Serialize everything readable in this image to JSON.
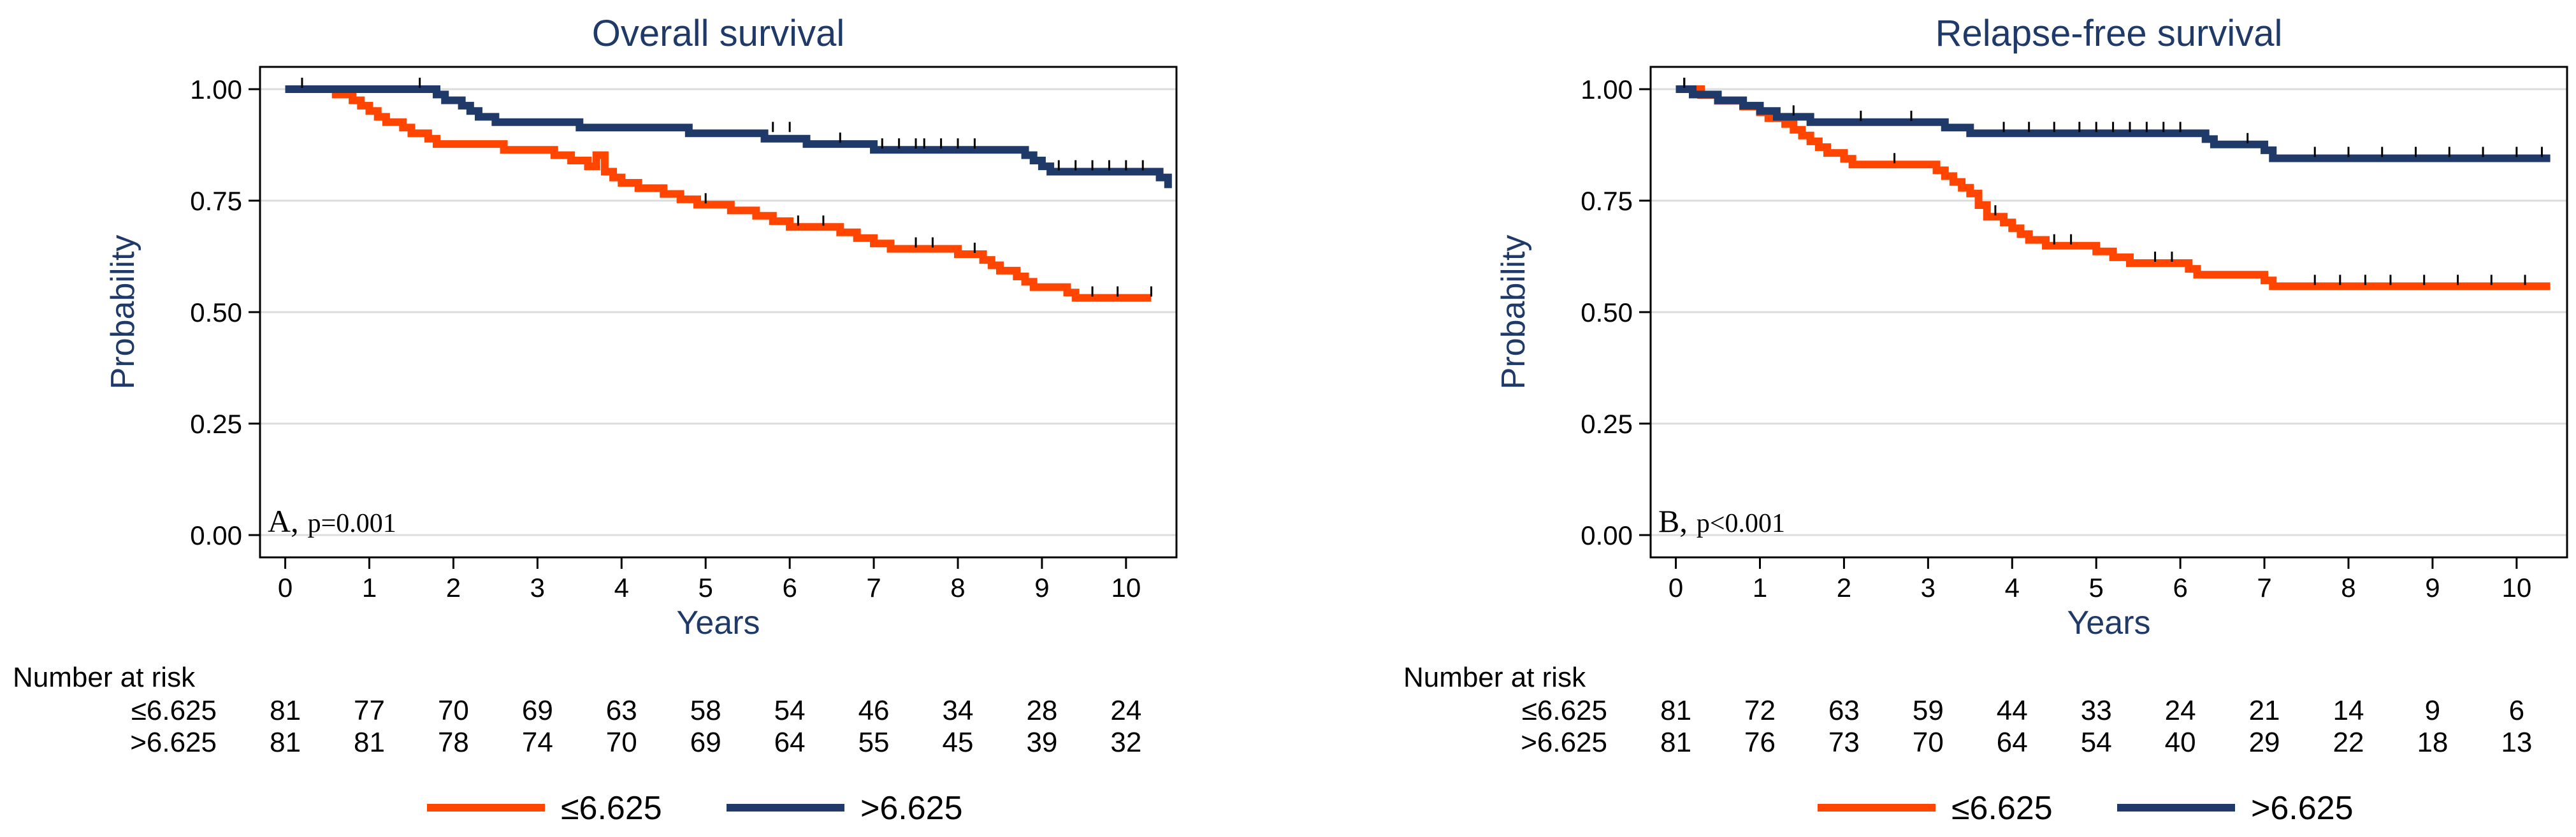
{
  "colors": {
    "low_group": "#FF4500",
    "high_group": "#1F3A68",
    "axis_label": "#1F3A68",
    "grid": "#DCDCDC",
    "frame": "#000000",
    "text": "#000000"
  },
  "chart_data": [
    {
      "type": "line",
      "step": true,
      "title": "Overall survival",
      "xlabel": "Years",
      "ylabel": "Probability",
      "xlim": [
        -0.3,
        10.6
      ],
      "ylim": [
        -0.05,
        1.05
      ],
      "xticks": [
        "0",
        "1",
        "2",
        "3",
        "4",
        "5",
        "6",
        "7",
        "8",
        "9",
        "10"
      ],
      "yticks": [
        "0.00",
        "0.25",
        "0.50",
        "0.75",
        "1.00"
      ],
      "grid": true,
      "annotation": {
        "label": "A,",
        "stat": "p=0.001"
      },
      "series": [
        {
          "name": "≤6.625",
          "color": "#FF4500",
          "points": [
            [
              0,
              1.0
            ],
            [
              0.6,
              1.0
            ],
            [
              0.6,
              0.988
            ],
            [
              0.8,
              0.975
            ],
            [
              0.9,
              0.963
            ],
            [
              1.0,
              0.951
            ],
            [
              1.1,
              0.938
            ],
            [
              1.2,
              0.926
            ],
            [
              1.4,
              0.914
            ],
            [
              1.5,
              0.901
            ],
            [
              1.7,
              0.889
            ],
            [
              1.8,
              0.877
            ],
            [
              2.6,
              0.877
            ],
            [
              2.6,
              0.864
            ],
            [
              3.7,
              0.852
            ],
            [
              3.2,
              0.852
            ],
            [
              3.4,
              0.84
            ],
            [
              3.6,
              0.827
            ],
            [
              3.8,
              0.815
            ],
            [
              3.9,
              0.802
            ],
            [
              4.0,
              0.79
            ],
            [
              4.2,
              0.778
            ],
            [
              4.5,
              0.765
            ],
            [
              4.7,
              0.753
            ],
            [
              4.9,
              0.741
            ],
            [
              5.3,
              0.728
            ],
            [
              5.6,
              0.716
            ],
            [
              5.8,
              0.704
            ],
            [
              6.0,
              0.691
            ],
            [
              6.6,
              0.679
            ],
            [
              6.8,
              0.666
            ],
            [
              7.0,
              0.654
            ],
            [
              7.2,
              0.642
            ],
            [
              8.0,
              0.63
            ],
            [
              8.3,
              0.617
            ],
            [
              8.4,
              0.605
            ],
            [
              8.5,
              0.593
            ],
            [
              8.7,
              0.58
            ],
            [
              8.8,
              0.568
            ],
            [
              8.9,
              0.556
            ],
            [
              9.3,
              0.544
            ],
            [
              9.4,
              0.532
            ],
            [
              10.3,
              0.532
            ]
          ],
          "censored": [
            [
              5.0,
              0.741
            ],
            [
              6.1,
              0.691
            ],
            [
              6.4,
              0.691
            ],
            [
              7.5,
              0.642
            ],
            [
              7.7,
              0.642
            ],
            [
              8.2,
              0.63
            ],
            [
              9.6,
              0.532
            ],
            [
              9.9,
              0.532
            ],
            [
              10.3,
              0.532
            ]
          ]
        },
        {
          "name": ">6.625",
          "color": "#1F3A68",
          "points": [
            [
              0,
              1.0
            ],
            [
              1.7,
              1.0
            ],
            [
              1.8,
              0.988
            ],
            [
              1.9,
              0.975
            ],
            [
              2.1,
              0.963
            ],
            [
              2.2,
              0.951
            ],
            [
              2.3,
              0.938
            ],
            [
              2.5,
              0.926
            ],
            [
              3.5,
              0.914
            ],
            [
              4.8,
              0.901
            ],
            [
              5.7,
              0.889
            ],
            [
              6.2,
              0.877
            ],
            [
              7.0,
              0.864
            ],
            [
              8.8,
              0.852
            ],
            [
              8.9,
              0.84
            ],
            [
              9.0,
              0.827
            ],
            [
              9.1,
              0.815
            ],
            [
              10.4,
              0.815
            ],
            [
              10.4,
              0.802
            ],
            [
              10.5,
              0.79
            ],
            [
              10.5,
              0.778
            ]
          ],
          "censored": [
            [
              0.2,
              1.0
            ],
            [
              1.6,
              1.0
            ],
            [
              5.8,
              0.901
            ],
            [
              6.0,
              0.901
            ],
            [
              6.6,
              0.877
            ],
            [
              7.1,
              0.864
            ],
            [
              7.3,
              0.864
            ],
            [
              7.5,
              0.864
            ],
            [
              7.6,
              0.864
            ],
            [
              7.8,
              0.864
            ],
            [
              8.0,
              0.864
            ],
            [
              8.2,
              0.864
            ],
            [
              9.2,
              0.815
            ],
            [
              9.4,
              0.815
            ],
            [
              9.6,
              0.815
            ],
            [
              9.8,
              0.815
            ],
            [
              10.0,
              0.815
            ],
            [
              10.2,
              0.815
            ]
          ]
        }
      ],
      "risk_table": {
        "header": "Number at risk",
        "rows": [
          {
            "label": "≤6.625",
            "values": [
              "81",
              "77",
              "70",
              "69",
              "63",
              "58",
              "54",
              "46",
              "34",
              "28",
              "24"
            ]
          },
          {
            "label": ">6.625",
            "values": [
              "81",
              "81",
              "78",
              "74",
              "70",
              "69",
              "64",
              "55",
              "45",
              "39",
              "32"
            ]
          }
        ]
      },
      "legend": {
        "position": "bottom",
        "items": [
          "≤6.625",
          ">6.625"
        ]
      }
    },
    {
      "type": "line",
      "step": true,
      "title": "Relapse-free survival",
      "xlabel": "Years",
      "ylabel": "Probability",
      "xlim": [
        -0.3,
        10.6
      ],
      "ylim": [
        -0.05,
        1.05
      ],
      "xticks": [
        "0",
        "1",
        "2",
        "3",
        "4",
        "5",
        "6",
        "7",
        "8",
        "9",
        "10"
      ],
      "yticks": [
        "0.00",
        "0.25",
        "0.50",
        "0.75",
        "1.00"
      ],
      "grid": true,
      "annotation": {
        "label": "B,",
        "stat": "p<0.001"
      },
      "series": [
        {
          "name": "≤6.625",
          "color": "#FF4500",
          "points": [
            [
              0,
              1.0
            ],
            [
              0.3,
              1.0
            ],
            [
              0.3,
              0.987
            ],
            [
              0.5,
              0.974
            ],
            [
              0.8,
              0.961
            ],
            [
              1.0,
              0.948
            ],
            [
              1.1,
              0.935
            ],
            [
              1.3,
              0.922
            ],
            [
              1.4,
              0.909
            ],
            [
              1.5,
              0.896
            ],
            [
              1.6,
              0.883
            ],
            [
              1.7,
              0.87
            ],
            [
              1.8,
              0.857
            ],
            [
              2.0,
              0.844
            ],
            [
              2.1,
              0.831
            ],
            [
              3.0,
              0.831
            ],
            [
              3.1,
              0.818
            ],
            [
              3.2,
              0.805
            ],
            [
              3.3,
              0.792
            ],
            [
              3.4,
              0.779
            ],
            [
              3.5,
              0.766
            ],
            [
              3.6,
              0.74
            ],
            [
              3.7,
              0.714
            ],
            [
              3.9,
              0.701
            ],
            [
              4.0,
              0.688
            ],
            [
              4.1,
              0.675
            ],
            [
              4.2,
              0.662
            ],
            [
              4.4,
              0.649
            ],
            [
              5.0,
              0.636
            ],
            [
              5.2,
              0.623
            ],
            [
              5.4,
              0.61
            ],
            [
              6.0,
              0.61
            ],
            [
              6.1,
              0.597
            ],
            [
              6.2,
              0.584
            ],
            [
              7.0,
              0.584
            ],
            [
              7.0,
              0.571
            ],
            [
              7.1,
              0.558
            ],
            [
              10.4,
              0.558
            ]
          ],
          "censored": [
            [
              0.1,
              1.0
            ],
            [
              2.6,
              0.831
            ],
            [
              3.8,
              0.714
            ],
            [
              4.5,
              0.649
            ],
            [
              4.7,
              0.649
            ],
            [
              5.7,
              0.61
            ],
            [
              5.9,
              0.61
            ],
            [
              7.6,
              0.558
            ],
            [
              7.9,
              0.558
            ],
            [
              8.2,
              0.558
            ],
            [
              8.5,
              0.558
            ],
            [
              8.9,
              0.558
            ],
            [
              9.3,
              0.558
            ],
            [
              9.7,
              0.558
            ],
            [
              10.1,
              0.558
            ]
          ]
        },
        {
          "name": ">6.625",
          "color": "#1F3A68",
          "points": [
            [
              0,
              1.0
            ],
            [
              0.2,
              1.0
            ],
            [
              0.2,
              0.988
            ],
            [
              0.5,
              0.975
            ],
            [
              0.8,
              0.963
            ],
            [
              1.0,
              0.951
            ],
            [
              1.2,
              0.938
            ],
            [
              1.6,
              0.926
            ],
            [
              3.1,
              0.926
            ],
            [
              3.2,
              0.914
            ],
            [
              3.5,
              0.901
            ],
            [
              6.3,
              0.901
            ],
            [
              6.3,
              0.888
            ],
            [
              6.4,
              0.876
            ],
            [
              6.9,
              0.876
            ],
            [
              7.0,
              0.863
            ],
            [
              7.1,
              0.85
            ],
            [
              7.1,
              0.845
            ],
            [
              10.4,
              0.845
            ]
          ],
          "censored": [
            [
              0.1,
              1.0
            ],
            [
              1.4,
              0.938
            ],
            [
              2.2,
              0.926
            ],
            [
              2.8,
              0.926
            ],
            [
              3.9,
              0.901
            ],
            [
              4.2,
              0.901
            ],
            [
              4.5,
              0.901
            ],
            [
              4.8,
              0.901
            ],
            [
              5.0,
              0.901
            ],
            [
              5.2,
              0.901
            ],
            [
              5.4,
              0.901
            ],
            [
              5.6,
              0.901
            ],
            [
              5.8,
              0.901
            ],
            [
              6.0,
              0.901
            ],
            [
              6.8,
              0.876
            ],
            [
              7.6,
              0.845
            ],
            [
              8.0,
              0.845
            ],
            [
              8.4,
              0.845
            ],
            [
              8.8,
              0.845
            ],
            [
              9.2,
              0.845
            ],
            [
              9.6,
              0.845
            ],
            [
              10.0,
              0.845
            ],
            [
              10.3,
              0.845
            ]
          ]
        }
      ],
      "risk_table": {
        "header": "Number at risk",
        "rows": [
          {
            "label": "≤6.625",
            "values": [
              "81",
              "72",
              "63",
              "59",
              "44",
              "33",
              "24",
              "21",
              "14",
              "9",
              "6"
            ]
          },
          {
            "label": ">6.625",
            "values": [
              "81",
              "76",
              "73",
              "70",
              "64",
              "54",
              "40",
              "29",
              "22",
              "18",
              "13"
            ]
          }
        ]
      },
      "legend": {
        "position": "bottom",
        "items": [
          "≤6.625",
          ">6.625"
        ]
      }
    }
  ]
}
